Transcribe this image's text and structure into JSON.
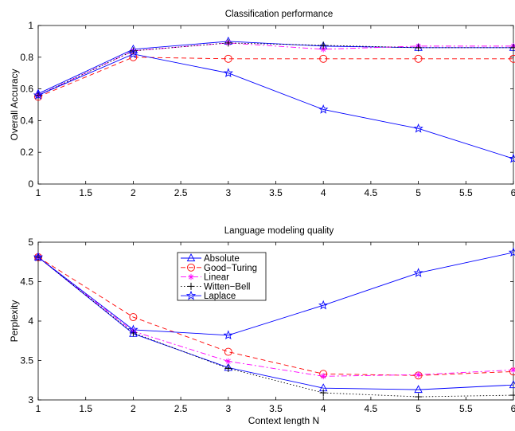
{
  "colors": {
    "absolute": "#0000ff",
    "good_turing": "#ff0000",
    "linear": "#ff00ff",
    "witten_bell": "#000000",
    "laplace": "#0000ff",
    "axes": "#000000"
  },
  "chart_data": [
    {
      "type": "line",
      "title": "Classification performance",
      "xlabel": "",
      "ylabel": "Overall Accuracy",
      "xlim": [
        1,
        6
      ],
      "ylim": [
        0,
        1
      ],
      "xticks": [
        "1",
        "1.5",
        "2",
        "2.5",
        "3",
        "3.5",
        "4",
        "4.5",
        "5",
        "5.5",
        "6"
      ],
      "yticks": [
        "0",
        "0.2",
        "0.4",
        "0.6",
        "0.8",
        "1"
      ],
      "grid": false,
      "x": [
        1,
        2,
        3,
        4,
        5,
        6
      ],
      "series": [
        {
          "key": "absolute",
          "marker": "triangle",
          "dash": "solid",
          "values": [
            0.57,
            0.85,
            0.9,
            0.87,
            0.86,
            0.86
          ]
        },
        {
          "key": "good_turing",
          "marker": "circle",
          "dash": "dashed",
          "values": [
            0.55,
            0.8,
            0.79,
            0.79,
            0.79,
            0.79
          ]
        },
        {
          "key": "linear",
          "marker": "asterisk",
          "dash": "dashdot",
          "values": [
            0.56,
            0.84,
            0.89,
            0.85,
            0.87,
            0.87
          ]
        },
        {
          "key": "witten_bell",
          "marker": "plus",
          "dash": "dotted",
          "values": [
            0.56,
            0.84,
            0.89,
            0.875,
            0.86,
            0.86
          ]
        },
        {
          "key": "laplace",
          "marker": "star",
          "dash": "solid",
          "values": [
            0.56,
            0.82,
            0.7,
            0.47,
            0.35,
            0.16
          ]
        }
      ]
    },
    {
      "type": "line",
      "title": "Language modeling quality",
      "xlabel": "Context length N",
      "ylabel": "Perplexity",
      "xlim": [
        1,
        6
      ],
      "ylim": [
        3,
        5
      ],
      "xticks": [
        "1",
        "1.5",
        "2",
        "2.5",
        "3",
        "3.5",
        "4",
        "4.5",
        "5",
        "5.5",
        "6"
      ],
      "yticks": [
        "3",
        "3.5",
        "4",
        "4.5",
        "5"
      ],
      "grid": false,
      "legend_position": "inside-upper-left",
      "x": [
        1,
        2,
        3,
        4,
        5,
        6
      ],
      "series": [
        {
          "key": "absolute",
          "name": "Absolute",
          "marker": "triangle",
          "dash": "solid",
          "values": [
            4.81,
            3.84,
            3.41,
            3.15,
            3.13,
            3.19
          ]
        },
        {
          "key": "good_turing",
          "name": "Good−Turing",
          "marker": "circle",
          "dash": "dashed",
          "values": [
            4.81,
            4.05,
            3.61,
            3.33,
            3.31,
            3.36
          ]
        },
        {
          "key": "linear",
          "name": "Linear",
          "marker": "asterisk",
          "dash": "dashdot",
          "values": [
            4.81,
            3.87,
            3.49,
            3.3,
            3.32,
            3.38
          ]
        },
        {
          "key": "witten_bell",
          "name": "Witten−Bell",
          "marker": "plus",
          "dash": "dotted",
          "values": [
            4.81,
            3.85,
            3.4,
            3.09,
            3.04,
            3.06
          ]
        },
        {
          "key": "laplace",
          "name": "Laplace",
          "marker": "star",
          "dash": "solid",
          "values": [
            4.81,
            3.89,
            3.82,
            4.2,
            4.61,
            4.87
          ]
        }
      ]
    }
  ]
}
